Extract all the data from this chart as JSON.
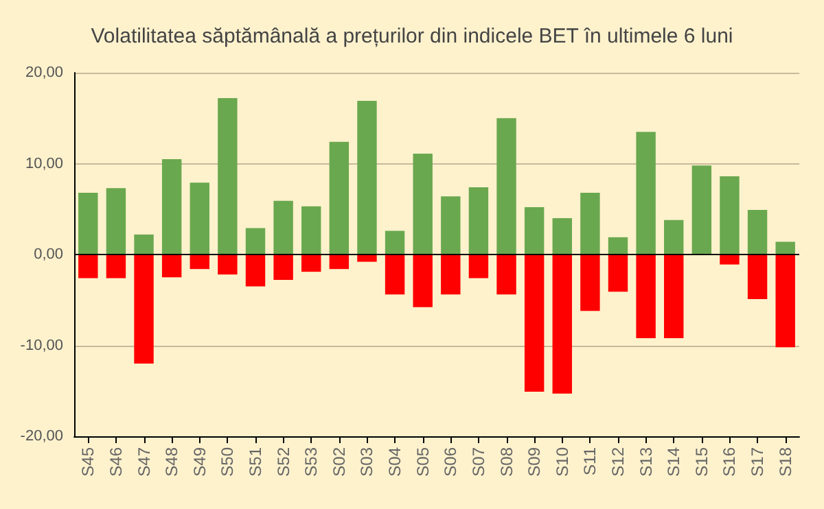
{
  "chart_data": {
    "type": "bar",
    "title": "Volatilitatea săptămânală a prețurilor din indicele BET în ultimele 6 luni",
    "categories": [
      "S45",
      "S46",
      "S47",
      "S48",
      "S49",
      "S50",
      "S51",
      "S52",
      "S53",
      "S02",
      "S03",
      "S04",
      "S05",
      "S06",
      "S07",
      "S08",
      "S09",
      "S10",
      "S11",
      "S12",
      "S13",
      "S14",
      "S15",
      "S16",
      "S17",
      "S18"
    ],
    "series": [
      {
        "color": "#6aa84f",
        "values": [
          6.8,
          7.3,
          2.2,
          10.5,
          7.9,
          17.2,
          2.9,
          5.9,
          5.3,
          12.4,
          16.9,
          2.6,
          11.1,
          6.4,
          7.4,
          15.0,
          5.2,
          4.0,
          6.8,
          1.9,
          13.5,
          3.8,
          9.8,
          8.6,
          4.9,
          1.4
        ]
      },
      {
        "color": "#ff0000",
        "values": [
          -2.6,
          -2.6,
          -12.0,
          -2.5,
          -1.6,
          -2.2,
          -3.5,
          -2.8,
          -1.9,
          -1.6,
          -0.8,
          -4.4,
          -5.8,
          -4.4,
          -2.6,
          -4.4,
          -15.1,
          -15.3,
          -6.2,
          -4.1,
          -9.2,
          -9.2,
          0,
          -1.1,
          -4.9,
          -10.2
        ]
      }
    ],
    "stacked": true,
    "ylim": [
      -20,
      20
    ],
    "yticks": [
      {
        "value": -20,
        "label": "-20,00"
      },
      {
        "value": -10,
        "label": "-10,00"
      },
      {
        "value": 0,
        "label": "0,00"
      },
      {
        "value": 10,
        "label": "10,00"
      },
      {
        "value": 20,
        "label": "20,00"
      }
    ],
    "grid": "y"
  }
}
